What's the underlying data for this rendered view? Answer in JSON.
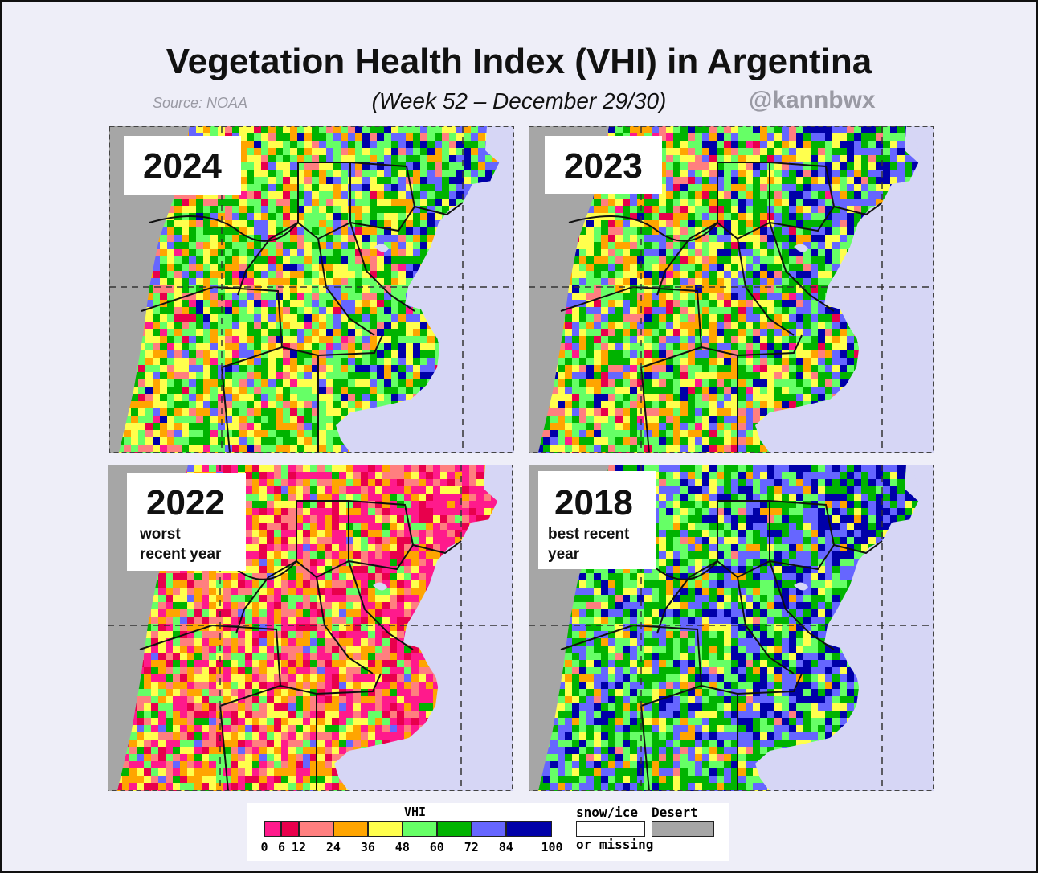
{
  "header": {
    "title": "Vegetation Health Index (VHI) in Argentina",
    "subtitle": "(Week 52 – December 29/30)",
    "source": "Source: NOAA",
    "handle": "@kannbwx"
  },
  "panels": [
    {
      "year": "2024",
      "note_line1": "",
      "note_line2": "",
      "profile": "mixed"
    },
    {
      "year": "2023",
      "note_line1": "",
      "note_line2": "",
      "profile": "mixed-wet"
    },
    {
      "year": "2022",
      "note_line1": "worst",
      "note_line2": "recent year",
      "profile": "drought"
    },
    {
      "year": "2018",
      "note_line1": "best recent",
      "note_line2": "year",
      "profile": "wet"
    }
  ],
  "legend": {
    "title": "VHI",
    "bins": [
      {
        "from": 0,
        "to": 6,
        "color": "#ff1a8c"
      },
      {
        "from": 6,
        "to": 12,
        "color": "#e8004c"
      },
      {
        "from": 12,
        "to": 24,
        "color": "#ff7f7f"
      },
      {
        "from": 24,
        "to": 36,
        "color": "#ffa500"
      },
      {
        "from": 36,
        "to": 48,
        "color": "#ffff4d"
      },
      {
        "from": 48,
        "to": 60,
        "color": "#66ff66"
      },
      {
        "from": 60,
        "to": 72,
        "color": "#00b300"
      },
      {
        "from": 72,
        "to": 84,
        "color": "#6666ff"
      },
      {
        "from": 84,
        "to": 100,
        "color": "#0000a8"
      }
    ],
    "ticks": [
      "0",
      "6",
      "12",
      "24",
      "36",
      "48",
      "60",
      "72",
      "84",
      "100"
    ],
    "snow_label": "snow/ice",
    "missing_label": "or missing",
    "desert_label": "Desert"
  },
  "colors": {
    "ocean": "#d6d6f5",
    "desert": "#a6a6a6",
    "border": "#111111"
  }
}
